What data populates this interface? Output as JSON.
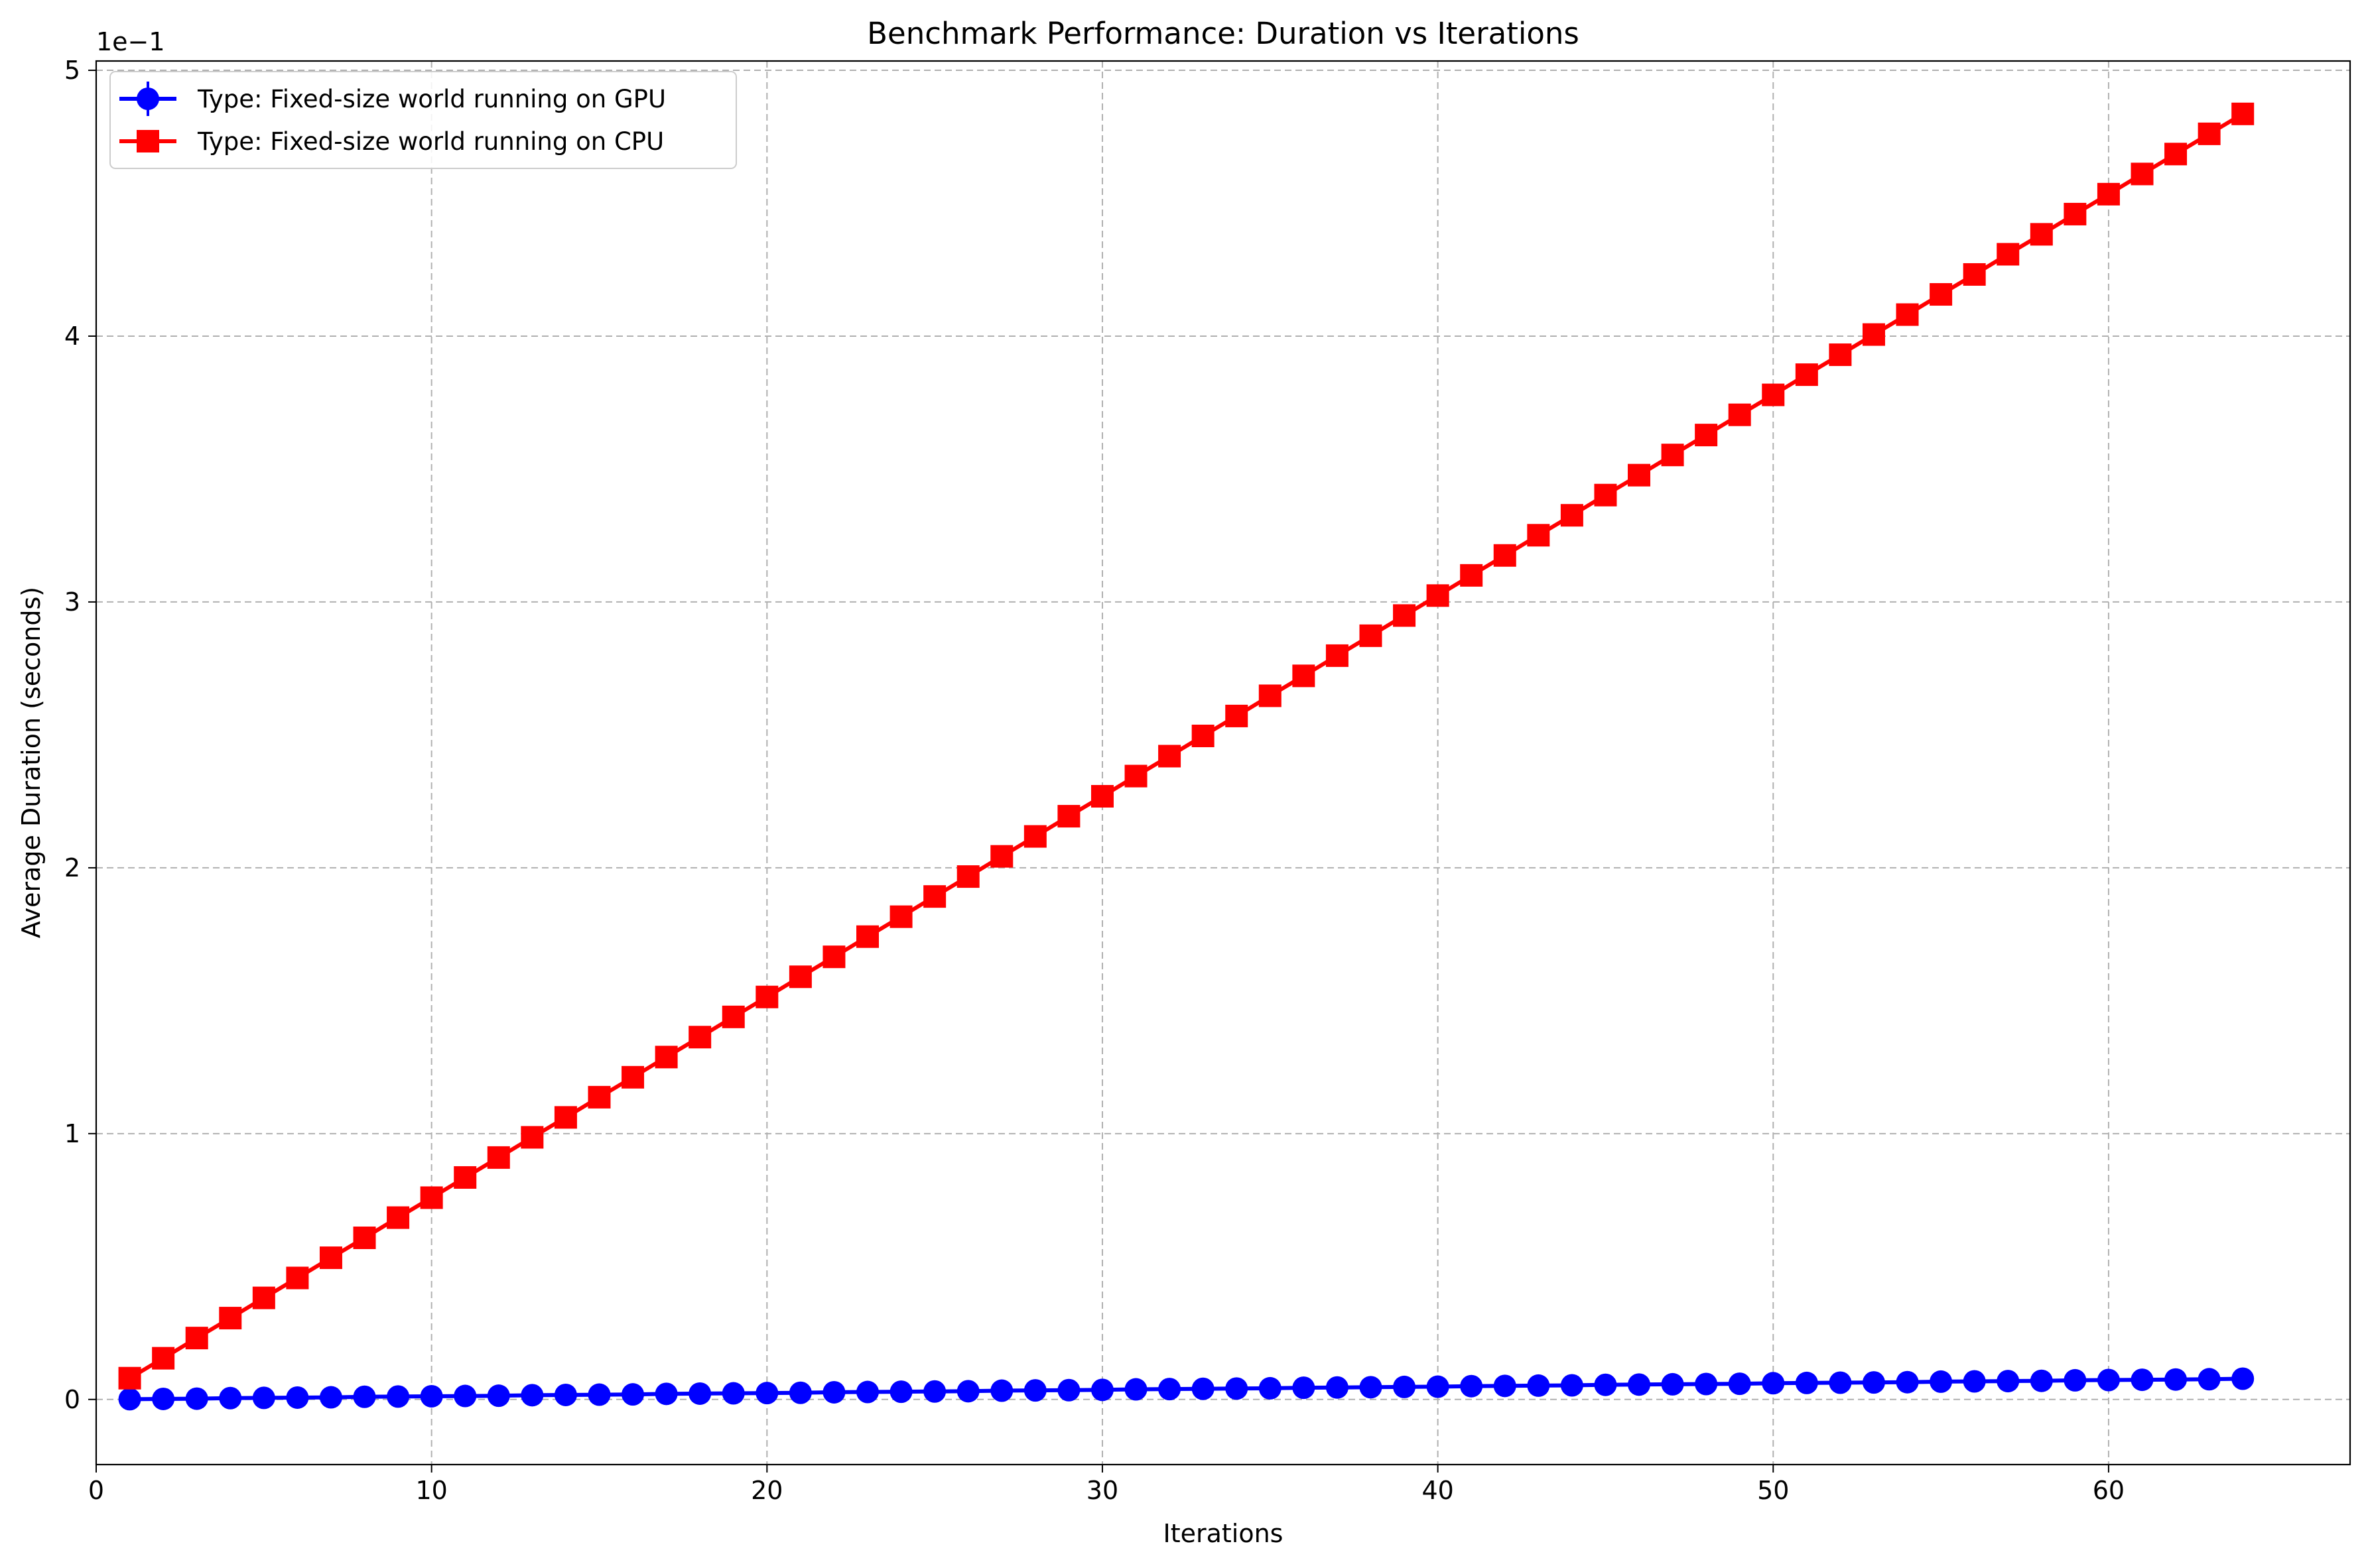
{
  "chart_data": {
    "type": "line",
    "title": "Benchmark Performance: Duration vs Iterations",
    "xlabel": "Iterations",
    "ylabel": "Average Duration (seconds)",
    "offset_text": "1e−1",
    "y_scale_factor": 0.1,
    "xlim": [
      0,
      67.2
    ],
    "ylim": [
      -0.0245,
      0.5035
    ],
    "xticks": [
      0,
      10,
      20,
      30,
      40,
      50,
      60
    ],
    "yticks": [
      0,
      0.1,
      0.2,
      0.3,
      0.4,
      0.5
    ],
    "ytick_labels": [
      "0",
      "1",
      "2",
      "3",
      "4",
      "5"
    ],
    "grid": true,
    "legend_position": "top-left",
    "series": [
      {
        "name": "Type: Fixed-size world running on GPU",
        "color": "#0000ff",
        "marker": "circle",
        "x": [
          1,
          2,
          3,
          4,
          5,
          6,
          7,
          8,
          9,
          10,
          11,
          12,
          13,
          14,
          15,
          16,
          17,
          18,
          19,
          20,
          21,
          22,
          23,
          24,
          25,
          26,
          27,
          28,
          29,
          30,
          31,
          32,
          33,
          34,
          35,
          36,
          37,
          38,
          39,
          40,
          41,
          42,
          43,
          44,
          45,
          46,
          47,
          48,
          49,
          50,
          51,
          52,
          53,
          54,
          55,
          56,
          57,
          58,
          59,
          60,
          61,
          62,
          63,
          64
        ],
        "values": [
          0.0001,
          0.0002,
          0.0003,
          0.0005,
          0.0006,
          0.0007,
          0.0008,
          0.001,
          0.0011,
          0.0012,
          0.0013,
          0.0014,
          0.0016,
          0.0017,
          0.0018,
          0.0019,
          0.0021,
          0.0022,
          0.0023,
          0.0024,
          0.0025,
          0.0027,
          0.0028,
          0.0029,
          0.003,
          0.0031,
          0.0033,
          0.0034,
          0.0035,
          0.0036,
          0.0038,
          0.0039,
          0.004,
          0.0041,
          0.0042,
          0.0044,
          0.0045,
          0.0046,
          0.0047,
          0.0048,
          0.005,
          0.0051,
          0.0052,
          0.0053,
          0.0055,
          0.0056,
          0.0057,
          0.0058,
          0.0059,
          0.0061,
          0.0062,
          0.0063,
          0.0064,
          0.0065,
          0.0067,
          0.0068,
          0.0069,
          0.007,
          0.0072,
          0.0073,
          0.0074,
          0.0075,
          0.0076,
          0.0078
        ]
      },
      {
        "name": "Type: Fixed-size world running on CPU",
        "color": "#ff0000",
        "marker": "square",
        "x": [
          1,
          2,
          3,
          4,
          5,
          6,
          7,
          8,
          9,
          10,
          11,
          12,
          13,
          14,
          15,
          16,
          17,
          18,
          19,
          20,
          21,
          22,
          23,
          24,
          25,
          26,
          27,
          28,
          29,
          30,
          31,
          32,
          33,
          34,
          35,
          36,
          37,
          38,
          39,
          40,
          41,
          42,
          43,
          44,
          45,
          46,
          47,
          48,
          49,
          50,
          51,
          52,
          53,
          54,
          55,
          56,
          57,
          58,
          59,
          60,
          61,
          62,
          63,
          64
        ],
        "values": [
          0.008,
          0.0155,
          0.0231,
          0.0306,
          0.0382,
          0.0457,
          0.0533,
          0.0608,
          0.0684,
          0.0759,
          0.0835,
          0.091,
          0.0986,
          0.1061,
          0.1137,
          0.1212,
          0.1288,
          0.1363,
          0.1439,
          0.1514,
          0.159,
          0.1665,
          0.1741,
          0.1816,
          0.1892,
          0.1967,
          0.2043,
          0.2118,
          0.2194,
          0.2269,
          0.2345,
          0.242,
          0.2496,
          0.2571,
          0.2647,
          0.2722,
          0.2798,
          0.2873,
          0.2949,
          0.3024,
          0.31,
          0.3175,
          0.3251,
          0.3326,
          0.3402,
          0.3477,
          0.3553,
          0.3628,
          0.3704,
          0.3779,
          0.3855,
          0.393,
          0.4006,
          0.4081,
          0.4157,
          0.4232,
          0.4308,
          0.4383,
          0.4459,
          0.4534,
          0.461,
          0.4685,
          0.4761,
          0.4836
        ]
      }
    ]
  }
}
